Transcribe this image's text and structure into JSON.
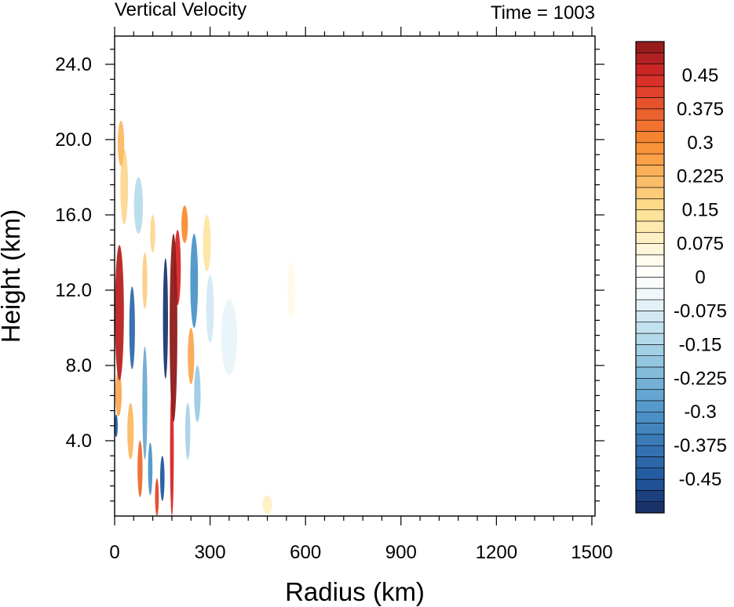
{
  "chart_data": {
    "type": "heatmap",
    "title_left": "Vertical Velocity",
    "title_right": "Time = 1003",
    "xlabel": "Radius (km)",
    "ylabel": "Height (km)",
    "xlim": [
      0,
      1510
    ],
    "ylim": [
      0,
      25.5
    ],
    "xticks": [
      0,
      300,
      600,
      900,
      1200,
      1500
    ],
    "xtick_labels": [
      "0",
      "300",
      "600",
      "900",
      "1200",
      "1500"
    ],
    "yticks": [
      4,
      8,
      12,
      16,
      20,
      24
    ],
    "ytick_labels": [
      "4.0",
      "8.0",
      "12.0",
      "16.0",
      "20.0",
      "24.0"
    ],
    "colorbar": {
      "levels_min": -0.525,
      "levels_step": 0.025,
      "n_colors": 42,
      "label_values": [
        0.45,
        0.375,
        0.3,
        0.225,
        0.15,
        0.075,
        0,
        -0.075,
        -0.15,
        -0.225,
        -0.3,
        -0.375,
        -0.45
      ],
      "labels": [
        "0.45",
        "0.375",
        "0.3",
        "0.225",
        "0.15",
        "0.075",
        "0",
        "-0.075",
        "-0.15",
        "-0.225",
        "-0.3",
        "-0.375",
        "-0.45"
      ],
      "colors": {
        "deep_positive": "#8b1a1a",
        "positive": "#d73027",
        "mid_positive": "#fc8d3c",
        "weak_positive": "#fee8a8",
        "zero": "#ffffff",
        "weak_negative": "#e0f0f8",
        "mid_negative": "#6baed6",
        "negative": "#2166ac",
        "deep_negative": "#1a2a5e"
      }
    },
    "features": [
      {
        "r": 15,
        "z": 10.8,
        "wr": 14,
        "wz": 3.6,
        "w": 0.48
      },
      {
        "r": 12,
        "z": 6.5,
        "wr": 10,
        "wz": 1.2,
        "w": 0.25
      },
      {
        "r": 185,
        "z": 10.0,
        "wr": 12,
        "wz": 5.0,
        "w": 0.52
      },
      {
        "r": 180,
        "z": 3.5,
        "wr": 6,
        "wz": 3.5,
        "w": 0.45
      },
      {
        "r": 198,
        "z": 13.2,
        "wr": 10,
        "wz": 2.0,
        "w": 0.45
      },
      {
        "r": 55,
        "z": 10.0,
        "wr": 9,
        "wz": 2.2,
        "w": -0.4
      },
      {
        "r": 160,
        "z": 10.5,
        "wr": 8,
        "wz": 3.2,
        "w": -0.5
      },
      {
        "r": 150,
        "z": 2.0,
        "wr": 7,
        "wz": 1.2,
        "w": -0.45
      },
      {
        "r": 133,
        "z": 1.0,
        "wr": 6,
        "wz": 1.0,
        "w": 0.4
      },
      {
        "r": 112,
        "z": 2.5,
        "wr": 7,
        "wz": 1.4,
        "w": -0.3
      },
      {
        "r": 95,
        "z": 6.0,
        "wr": 8,
        "wz": 3.0,
        "w": -0.25
      },
      {
        "r": 250,
        "z": 12.5,
        "wr": 12,
        "wz": 2.5,
        "w": -0.3
      },
      {
        "r": 260,
        "z": 6.5,
        "wr": 10,
        "wz": 1.5,
        "w": -0.2
      },
      {
        "r": 240,
        "z": 8.5,
        "wr": 10,
        "wz": 1.5,
        "w": 0.25
      },
      {
        "r": 80,
        "z": 2.5,
        "wr": 8,
        "wz": 1.5,
        "w": 0.35
      },
      {
        "r": 50,
        "z": 4.5,
        "wr": 10,
        "wz": 1.5,
        "w": 0.22
      },
      {
        "r": 30,
        "z": 17.5,
        "wr": 12,
        "wz": 2.0,
        "w": 0.18
      },
      {
        "r": 20,
        "z": 19.8,
        "wr": 10,
        "wz": 1.2,
        "w": 0.22
      },
      {
        "r": 75,
        "z": 16.5,
        "wr": 14,
        "wz": 1.5,
        "w": -0.15
      },
      {
        "r": 290,
        "z": 14.5,
        "wr": 12,
        "wz": 1.5,
        "w": 0.15
      },
      {
        "r": 220,
        "z": 15.5,
        "wr": 10,
        "wz": 1.0,
        "w": 0.3
      },
      {
        "r": 300,
        "z": 11.0,
        "wr": 12,
        "wz": 1.8,
        "w": -0.1
      },
      {
        "r": 360,
        "z": 9.5,
        "wr": 25,
        "wz": 2.0,
        "w": -0.06
      },
      {
        "r": 555,
        "z": 12.0,
        "wr": 12,
        "wz": 1.5,
        "w": 0.05
      },
      {
        "r": 480,
        "z": 0.6,
        "wr": 15,
        "wz": 0.5,
        "w": 0.1
      },
      {
        "r": 5,
        "z": 4.8,
        "wr": 5,
        "wz": 0.6,
        "w": -0.45
      },
      {
        "r": 95,
        "z": 12.5,
        "wr": 8,
        "wz": 1.5,
        "w": 0.2
      },
      {
        "r": 120,
        "z": 15.0,
        "wr": 8,
        "wz": 1.0,
        "w": 0.18
      },
      {
        "r": 230,
        "z": 4.5,
        "wr": 8,
        "wz": 1.5,
        "w": -0.18
      }
    ]
  }
}
